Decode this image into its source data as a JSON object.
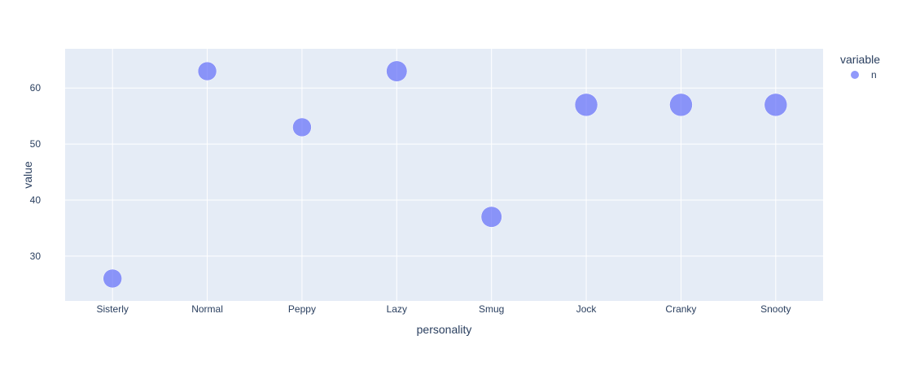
{
  "chart_data": {
    "type": "scatter",
    "xlabel": "personality",
    "ylabel": "value",
    "categories": [
      "Sisterly",
      "Normal",
      "Peppy",
      "Lazy",
      "Smug",
      "Jock",
      "Cranky",
      "Snooty"
    ],
    "series": [
      {
        "name": "n",
        "color": "#636efa",
        "values": [
          26,
          63,
          53,
          63,
          37,
          57,
          57,
          57
        ],
        "relative_sizes": [
          0.82,
          0.82,
          0.82,
          0.91,
          0.91,
          1.0,
          1.0,
          1.0
        ]
      }
    ],
    "ylim": [
      22,
      67
    ],
    "yticks": [
      30,
      40,
      50,
      60
    ],
    "grid": true,
    "legend": {
      "title": "variable",
      "position": "top-right"
    },
    "background": "#e5ecf6"
  }
}
